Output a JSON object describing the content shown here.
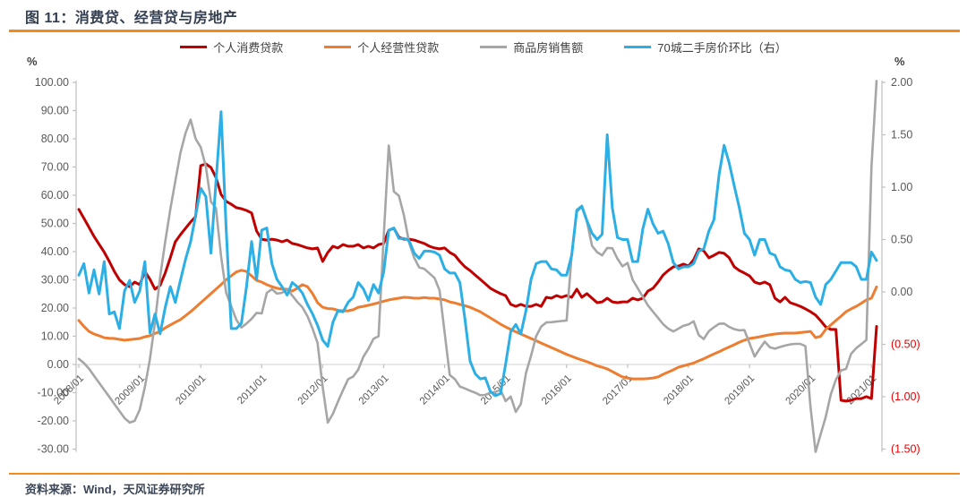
{
  "header": {
    "title": "图 11：消费贷、经营贷与房地产"
  },
  "footer": {
    "source": "资料来源：Wind，天风证券研究所"
  },
  "chart_data": {
    "type": "line",
    "title": "图 11：消费贷、经营贷与房地产",
    "x_start": "2008/01",
    "x_end": "2021/02",
    "x_tick_labels": [
      "2008/01",
      "2009/01",
      "2010/01",
      "2011/01",
      "2012/01",
      "2013/01",
      "2014/01",
      "2015/01",
      "2016/01",
      "2017/01",
      "2018/01",
      "2019/01",
      "2020/01",
      "2021/01"
    ],
    "left_axis": {
      "unit": "%",
      "min": -30,
      "max": 100,
      "step": 10,
      "tick_labels": [
        "100.00",
        "90.00",
        "80.00",
        "70.00",
        "60.00",
        "50.00",
        "40.00",
        "30.00",
        "20.00",
        "10.00",
        "0.00",
        "-10.00",
        "-20.00",
        "-30.00"
      ],
      "label_color": "#595959"
    },
    "right_axis": {
      "unit": "%",
      "min": -1.5,
      "max": 2,
      "step": 0.5,
      "tick_labels": [
        "2.00",
        "1.50",
        "1.00",
        "0.50",
        "0.00",
        "(0.50)",
        "(1.00)",
        "(1.50)"
      ],
      "label_color": "#595959",
      "negative_color": "#E60000"
    },
    "grid": "zero-line-only",
    "legend_position": "top",
    "series": [
      {
        "key": "consumer-loan",
        "name": "个人消费贷款",
        "color": "#C00000",
        "axis": "left",
        "width": 3,
        "values": [
          55.0,
          51.8,
          48.6,
          45.4,
          42.6,
          39.8,
          36.5,
          33.0,
          30.0,
          28.3,
          27.6,
          29.2,
          28.3,
          33.0,
          30.2,
          26.7,
          28.0,
          32.4,
          37.8,
          43.5,
          46.0,
          48.3,
          50.5,
          52.4,
          70.5,
          71.1,
          69.8,
          66.3,
          60.3,
          57.8,
          56.8,
          55.6,
          55.2,
          54.6,
          53.7,
          47.3,
          44.4,
          44.1,
          44.4,
          44.1,
          43.5,
          44.1,
          42.9,
          42.5,
          41.9,
          41.3,
          41.0,
          41.3,
          36.5,
          39.7,
          41.9,
          41.3,
          42.5,
          41.9,
          41.9,
          42.5,
          41.3,
          41.9,
          41.3,
          42.5,
          42.9,
          47.6,
          48.3,
          45.1,
          44.4,
          44.4,
          44.1,
          43.5,
          42.9,
          41.9,
          41.3,
          41.0,
          41.3,
          39.7,
          38.7,
          36.5,
          34.6,
          33.3,
          31.7,
          30.2,
          28.6,
          27.0,
          26.0,
          25.1,
          24.4,
          21.3,
          20.6,
          21.3,
          20.6,
          20.6,
          21.3,
          20.6,
          23.8,
          23.5,
          24.4,
          23.8,
          24.4,
          23.8,
          26.7,
          23.8,
          25.1,
          23.5,
          21.9,
          22.2,
          23.5,
          22.2,
          21.9,
          22.2,
          22.2,
          23.5,
          22.9,
          23.5,
          26.0,
          27.0,
          29.2,
          31.7,
          33.3,
          34.6,
          34.9,
          35.6,
          34.9,
          37.1,
          41.0,
          40.3,
          37.8,
          38.7,
          39.7,
          39.4,
          37.8,
          34.6,
          33.3,
          32.4,
          31.4,
          29.2,
          28.6,
          29.2,
          28.3,
          23.5,
          22.2,
          23.8,
          21.9,
          21.3,
          20.6,
          19.7,
          18.7,
          17.5,
          15.5,
          13.3,
          12.4,
          12.4,
          -12.7,
          -13.0,
          -12.7,
          -12.1,
          -12.1,
          -11.4,
          -12.1,
          13.5
        ]
      },
      {
        "key": "business-loan",
        "name": "个人经营性贷款",
        "color": "#ED7D31",
        "axis": "left",
        "width": 3,
        "values": [
          15.6,
          13.5,
          11.7,
          10.8,
          10.2,
          9.5,
          9.3,
          9.2,
          8.9,
          8.6,
          8.8,
          9.0,
          9.2,
          9.8,
          10.2,
          11.0,
          11.7,
          13.0,
          14.0,
          15.0,
          15.9,
          17.3,
          18.7,
          20.3,
          21.9,
          23.5,
          25.1,
          26.7,
          28.3,
          30.0,
          31.4,
          32.8,
          33.4,
          33.0,
          31.4,
          29.8,
          29.2,
          28.3,
          27.6,
          27.0,
          26.7,
          26.7,
          26.0,
          27.0,
          28.3,
          27.6,
          25.1,
          21.9,
          20.3,
          19.8,
          19.7,
          19.2,
          19.0,
          19.0,
          19.4,
          20.3,
          20.6,
          21.0,
          21.4,
          21.9,
          22.4,
          22.9,
          23.2,
          23.5,
          23.8,
          23.7,
          23.5,
          23.5,
          23.7,
          23.5,
          23.5,
          23.2,
          22.9,
          22.2,
          21.8,
          21.3,
          20.8,
          20.3,
          19.5,
          18.7,
          17.6,
          16.5,
          15.4,
          14.3,
          13.3,
          12.4,
          11.6,
          10.8,
          10.0,
          9.2,
          8.4,
          7.6,
          6.8,
          6.0,
          5.2,
          4.4,
          3.6,
          2.9,
          2.2,
          1.6,
          1.0,
          0.3,
          -0.5,
          -1.0,
          -1.6,
          -2.5,
          -3.5,
          -4.4,
          -4.8,
          -5.1,
          -5.1,
          -5.1,
          -5.0,
          -4.8,
          -4.4,
          -3.5,
          -2.7,
          -1.9,
          -1.0,
          -0.5,
          0.0,
          0.5,
          1.3,
          2.0,
          2.9,
          3.7,
          4.5,
          5.4,
          6.2,
          7.0,
          7.9,
          8.6,
          9.2,
          9.5,
          9.8,
          10.2,
          10.5,
          10.8,
          11.0,
          11.1,
          11.1,
          11.1,
          11.3,
          11.5,
          11.7,
          9.5,
          10.0,
          12.4,
          14.0,
          15.6,
          17.1,
          18.7,
          19.7,
          20.6,
          21.7,
          22.9,
          23.5,
          27.5
        ]
      },
      {
        "key": "housing-sales",
        "name": "商品房销售额",
        "color": "#A6A6A6",
        "axis": "left",
        "width": 2.6,
        "values": [
          2.0,
          0.5,
          -1.5,
          -4.0,
          -6.5,
          -9.0,
          -11.5,
          -14.0,
          -16.5,
          -19.0,
          -20.6,
          -20.0,
          -16.0,
          -8.0,
          2.0,
          15.0,
          31.0,
          43.5,
          55.0,
          65.0,
          75.0,
          82.0,
          86.8,
          80.0,
          77.0,
          70.2,
          57.7,
          55.4,
          38.4,
          25.4,
          20.6,
          15.9,
          13.1,
          14.5,
          16.2,
          18.3,
          18.1,
          25.4,
          26.7,
          25.1,
          25.4,
          26.7,
          24.4,
          22.2,
          20.3,
          17.1,
          12.7,
          7.6,
          -8.0,
          -20.6,
          -17.5,
          -13.2,
          -9.1,
          -5.2,
          -4.3,
          -1.8,
          2.7,
          5.6,
          9.1,
          10.0,
          45.0,
          77.6,
          61.3,
          59.8,
          52.8,
          43.2,
          37.8,
          34.4,
          33.9,
          32.3,
          30.7,
          26.3,
          11.3,
          -3.7,
          -5.2,
          -7.8,
          -8.5,
          -9.3,
          -10.0,
          -10.9,
          -10.8,
          -10.0,
          -9.7,
          -9.0,
          -13.0,
          -11.4,
          -16.8,
          -14.0,
          -3.1,
          3.1,
          10.0,
          13.4,
          14.9,
          15.0,
          15.2,
          15.4,
          15.6,
          39.0,
          54.1,
          55.9,
          50.7,
          42.1,
          39.8,
          38.7,
          41.3,
          41.2,
          37.5,
          34.8,
          36.0,
          30.0,
          27.0,
          24.0,
          21.0,
          18.7,
          16.5,
          14.3,
          12.7,
          11.7,
          12.7,
          13.7,
          14.2,
          15.3,
          10.4,
          9.0,
          11.8,
          13.2,
          14.4,
          14.5,
          13.3,
          12.5,
          12.1,
          12.2,
          7.5,
          2.8,
          5.6,
          8.1,
          6.1,
          5.6,
          6.2,
          6.7,
          7.1,
          7.3,
          7.3,
          6.5,
          -15.0,
          -35.9,
          -24.7,
          -18.6,
          -10.6,
          -5.4,
          -2.1,
          -1.6,
          3.8,
          5.8,
          7.2,
          8.7,
          70.0,
          133.4
        ]
      },
      {
        "key": "price-mom-70city",
        "name": "70城二手房价环比（右）",
        "color": "#2BAFE4",
        "axis": "right",
        "width": 3,
        "values": [
          0.16,
          0.27,
          -0.01,
          0.21,
          -0.02,
          0.29,
          -0.21,
          -0.19,
          -0.35,
          0.01,
          0.11,
          -0.1,
          0.01,
          0.29,
          -0.39,
          -0.21,
          -0.4,
          -0.15,
          0.05,
          -0.1,
          0.11,
          0.31,
          0.48,
          0.73,
          0.99,
          0.91,
          0.37,
          1.05,
          1.72,
          0.6,
          -0.35,
          -0.35,
          -0.3,
          0.05,
          0.48,
          0.12,
          0.59,
          0.61,
          0.27,
          0.12,
          0.05,
          -0.03,
          0.09,
          0.05,
          -0.01,
          -0.12,
          -0.21,
          -0.32,
          -0.46,
          -0.52,
          -0.29,
          -0.18,
          -0.19,
          -0.1,
          -0.05,
          0.09,
          0.03,
          -0.08,
          0.07,
          -0.01,
          0.19,
          0.59,
          0.61,
          0.51,
          0.51,
          0.49,
          0.37,
          0.32,
          0.39,
          0.39,
          0.38,
          0.35,
          0.22,
          0.18,
          0.18,
          0.09,
          -0.26,
          -0.66,
          -0.78,
          -0.83,
          -0.82,
          -0.95,
          -0.99,
          -0.97,
          -0.69,
          -0.38,
          -0.31,
          -0.4,
          -0.18,
          0.12,
          0.27,
          0.29,
          0.29,
          0.22,
          0.21,
          0.16,
          0.16,
          0.35,
          0.78,
          0.82,
          0.68,
          0.56,
          0.5,
          0.55,
          1.5,
          0.8,
          0.52,
          0.5,
          0.5,
          0.29,
          0.29,
          0.6,
          0.79,
          0.65,
          0.56,
          0.58,
          0.46,
          0.28,
          0.22,
          0.24,
          0.24,
          0.27,
          0.39,
          0.41,
          0.58,
          0.69,
          1.12,
          1.4,
          1.23,
          1.01,
          0.8,
          0.56,
          0.5,
          0.35,
          0.5,
          0.5,
          0.37,
          0.35,
          0.24,
          0.21,
          0.2,
          0.12,
          0.09,
          0.1,
          0.09,
          -0.05,
          -0.12,
          0.07,
          0.12,
          0.2,
          0.28,
          0.28,
          0.28,
          0.24,
          0.12,
          0.12,
          0.38,
          0.3
        ]
      }
    ]
  }
}
